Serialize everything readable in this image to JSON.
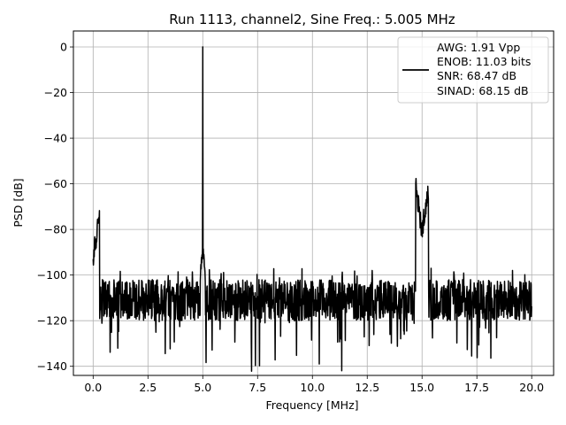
{
  "chart_data": {
    "type": "line",
    "title": "Run 1113, channel2, Sine Freq.: 5.005 MHz",
    "xlabel": "Frequency [MHz]",
    "ylabel": "PSD [dB]",
    "xlim": [
      -0.9,
      21.0
    ],
    "ylim": [
      -144,
      7
    ],
    "xticks": [
      0.0,
      2.5,
      5.0,
      7.5,
      10.0,
      12.5,
      15.0,
      17.5,
      20.0
    ],
    "xtick_labels": [
      "0.0",
      "2.5",
      "5.0",
      "7.5",
      "10.0",
      "12.5",
      "15.0",
      "17.5",
      "20.0"
    ],
    "yticks": [
      0,
      -20,
      -40,
      -60,
      -80,
      -100,
      -120,
      -140
    ],
    "ytick_labels": [
      "0",
      "−20",
      "−40",
      "−60",
      "−80",
      "−100",
      "−120",
      "−140"
    ],
    "grid": true,
    "legend_position": "top-right",
    "series": [
      {
        "legend_lines": [
          "AWG: 1.91 Vpp",
          "ENOB: 11.03 bits",
          "SNR: 68.47 dB",
          "SINAD: 68.15 dB"
        ],
        "color": "#000000",
        "noise_floor_db": -111,
        "noise_band_db": [
          -120,
          -100
        ],
        "x_range": [
          0.0,
          20.0
        ],
        "peaks": [
          {
            "x": 0.0,
            "y": -93
          },
          {
            "x": 5.0,
            "y": 0
          },
          {
            "x": 15.0,
            "y": -81
          }
        ]
      }
    ]
  }
}
